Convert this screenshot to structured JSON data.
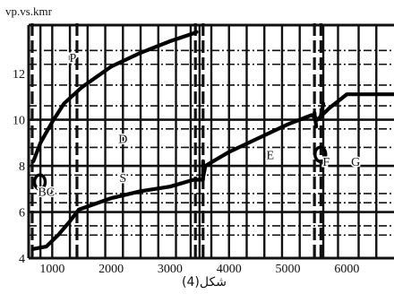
{
  "chart_data": {
    "type": "line",
    "title": "vp.vs.kmr",
    "caption": "شكل(4)",
    "xlabel": "",
    "ylabel": "",
    "xlim": [
      600,
      6800
    ],
    "ylim": [
      4,
      14.1
    ],
    "x_ticks": [
      {
        "value": 1000,
        "label": "1000"
      },
      {
        "value": 2000,
        "label": "2000"
      },
      {
        "value": 3000,
        "label": "3000"
      },
      {
        "value": 4000,
        "label": "4000"
      },
      {
        "value": 5000,
        "label": "5000"
      },
      {
        "value": 6000,
        "label": "6000"
      }
    ],
    "y_ticks": [
      {
        "value": 4,
        "label": "4"
      },
      {
        "value": 6,
        "label": "6"
      },
      {
        "value": 8,
        "label": "8"
      },
      {
        "value": 10,
        "label": "10"
      },
      {
        "value": 12,
        "label": "12"
      }
    ],
    "grid": true,
    "series": [
      {
        "name": "P",
        "x": [
          680,
          800,
          1000,
          1200,
          1500,
          2000,
          2500,
          3000,
          3350,
          3450
        ],
        "y": [
          8.2,
          9.0,
          9.9,
          10.7,
          11.4,
          12.3,
          12.9,
          13.4,
          13.7,
          13.8
        ]
      },
      {
        "name": "S",
        "x": [
          680,
          900,
          1100,
          1300,
          1450,
          2000,
          2500,
          3000,
          3400,
          3550
        ],
        "y": [
          4.4,
          4.5,
          5.0,
          5.6,
          6.1,
          6.6,
          6.9,
          7.1,
          7.4,
          7.4
        ]
      },
      {
        "name": "E",
        "x": [
          3560,
          3600,
          4000,
          4500,
          5000,
          5300,
          5400,
          5500,
          5700,
          6000,
          6500,
          6800
        ],
        "y": [
          7.5,
          8.0,
          8.6,
          9.2,
          9.8,
          10.1,
          10.2,
          10.0,
          10.5,
          11.1,
          11.1,
          11.1
        ]
      }
    ],
    "segments": [
      {
        "name": "S-jump",
        "x": [
          3560,
          3560
        ],
        "y": [
          7.4,
          8.2
        ]
      },
      {
        "name": "E-drop",
        "x": [
          5450,
          5480
        ],
        "y": [
          10.3,
          9.7
        ]
      },
      {
        "name": "F-jump",
        "x": [
          5560,
          5600
        ],
        "y": [
          10.2,
          10.7
        ]
      }
    ],
    "blobs": [
      {
        "name": "low-velocity-cluster",
        "x": 790,
        "y": 7.3
      },
      {
        "name": "f-zone-mark",
        "x": 5550,
        "y": 8.5
      }
    ],
    "annotations": [
      {
        "text": "P",
        "x": 1350,
        "y": 12.5
      },
      {
        "text": "S",
        "x": 2200,
        "y": 7.3
      },
      {
        "text": "D",
        "x": 2200,
        "y": 9.0
      },
      {
        "text": "E",
        "x": 4700,
        "y": 8.3
      },
      {
        "text": "F",
        "x": 5650,
        "y": 8.0
      },
      {
        "text": "G",
        "x": 6150,
        "y": 8.0
      },
      {
        "text": "BC",
        "x": 900,
        "y": 6.7
      }
    ],
    "vertical_markers_solid": [
      800,
      1000,
      1300,
      1600,
      1900,
      2200,
      2500,
      2800,
      3100,
      3350,
      3500,
      3700,
      4000,
      4300,
      4600,
      4900,
      5200,
      5600,
      5850,
      6200,
      6500
    ],
    "vertical_markers_dashed": [
      660,
      1420,
      3430,
      3560,
      5450,
      5560
    ],
    "horizontal_markers_solid": [
      6,
      8,
      10
    ],
    "horizontal_markers_dashdot": [
      5,
      5.4,
      6.4,
      6.8,
      7.6,
      8.8,
      9.6,
      10.6,
      11.5,
      12.4,
      13.0
    ]
  }
}
